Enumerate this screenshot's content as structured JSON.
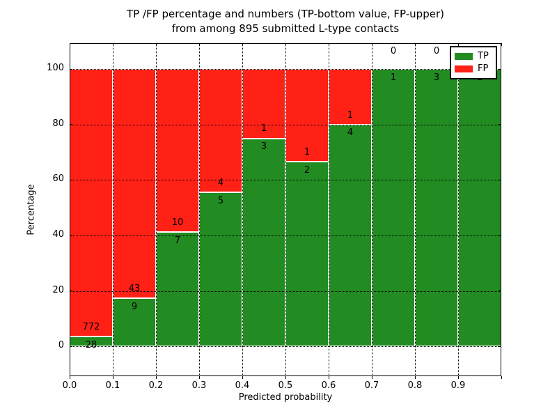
{
  "title": {
    "line1": "TP /FP percentage and numbers (TP-bottom value, FP-upper)",
    "line2": "from among 895 submitted L-type contacts"
  },
  "axes": {
    "xlabel": "Predicted probability",
    "ylabel": "Percentage",
    "x_ticks": [
      "0.0",
      "0.1",
      "0.2",
      "0.3",
      "0.4",
      "0.5",
      "0.6",
      "0.7",
      "0.8",
      "0.9"
    ],
    "y_ticks": [
      "0",
      "20",
      "40",
      "60",
      "80",
      "100"
    ]
  },
  "legend": {
    "items": [
      {
        "label": "TP",
        "color": "#228b22",
        "swatch": "tp-swatch"
      },
      {
        "label": "FP",
        "color": "#ff2016",
        "swatch": "fp-swatch"
      }
    ]
  },
  "colors": {
    "tp": "#228b22",
    "fp": "#ff2016",
    "background": "#ffffff",
    "grid": "#000000",
    "text": "#000000",
    "bar_edge": "#ffffff"
  },
  "chart_data": {
    "type": "bar",
    "stacked": true,
    "title": "TP /FP percentage and numbers (TP-bottom value, FP-upper) from among 895 submitted L-type contacts",
    "xlabel": "Predicted probability",
    "ylabel": "Percentage",
    "bin_edges": [
      0.0,
      0.1,
      0.2,
      0.3,
      0.4,
      0.5,
      0.6,
      0.7,
      0.8,
      0.9,
      1.0
    ],
    "series": [
      {
        "name": "TP",
        "counts": [
          28,
          9,
          7,
          5,
          3,
          2,
          4,
          1,
          3,
          1
        ]
      },
      {
        "name": "FP",
        "counts": [
          772,
          43,
          10,
          4,
          1,
          1,
          1,
          0,
          0,
          0
        ]
      }
    ],
    "tp_percent": [
      3.5,
      17.3,
      41.2,
      55.6,
      75.0,
      66.7,
      80.0,
      100.0,
      100.0,
      100.0
    ],
    "total_contacts": 895,
    "xlim": [
      0.0,
      1.0
    ],
    "ylim": [
      -10.7,
      109.3
    ],
    "y_grid_values": [
      0,
      20,
      40,
      60,
      80,
      100
    ],
    "x_grid_values": [
      0.1,
      0.2,
      0.3,
      0.4,
      0.5,
      0.6,
      0.7,
      0.8,
      0.9
    ],
    "grid": true,
    "legend_position": "upper right"
  }
}
